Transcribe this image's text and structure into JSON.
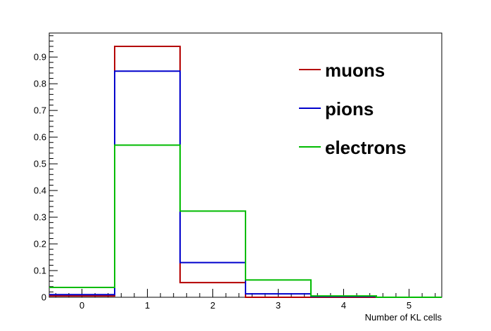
{
  "chart_data": {
    "type": "histogram",
    "xlabel": "Number of KL cells",
    "ylabel": "",
    "title": "",
    "xlim": [
      -0.5,
      5.5
    ],
    "ylim": [
      0,
      0.99
    ],
    "x_ticks": [
      0,
      1,
      2,
      3,
      4,
      5
    ],
    "y_ticks": [
      0,
      0.1,
      0.2,
      0.3,
      0.4,
      0.5,
      0.6,
      0.7,
      0.8,
      0.9
    ],
    "y_tick_labels": [
      "0",
      "0.1",
      "0.2",
      "0.3",
      "0.4",
      "0.5",
      "0.6",
      "0.7",
      "0.8",
      "0.9"
    ],
    "bin_edges": [
      -0.5,
      0.5,
      1.5,
      2.5,
      3.5,
      4.5,
      5.5
    ],
    "grid": false,
    "legend_position": "top-right",
    "series": [
      {
        "name": "muons",
        "color": "#b40000",
        "values": [
          0.005,
          0.94,
          0.055,
          0.0,
          0.0,
          0.0
        ]
      },
      {
        "name": "pions",
        "color": "#0000cc",
        "values": [
          0.01,
          0.847,
          0.13,
          0.013,
          0.003,
          0.0
        ]
      },
      {
        "name": "electrons",
        "color": "#00bb00",
        "values": [
          0.037,
          0.57,
          0.323,
          0.065,
          0.005,
          0.0
        ]
      }
    ]
  }
}
